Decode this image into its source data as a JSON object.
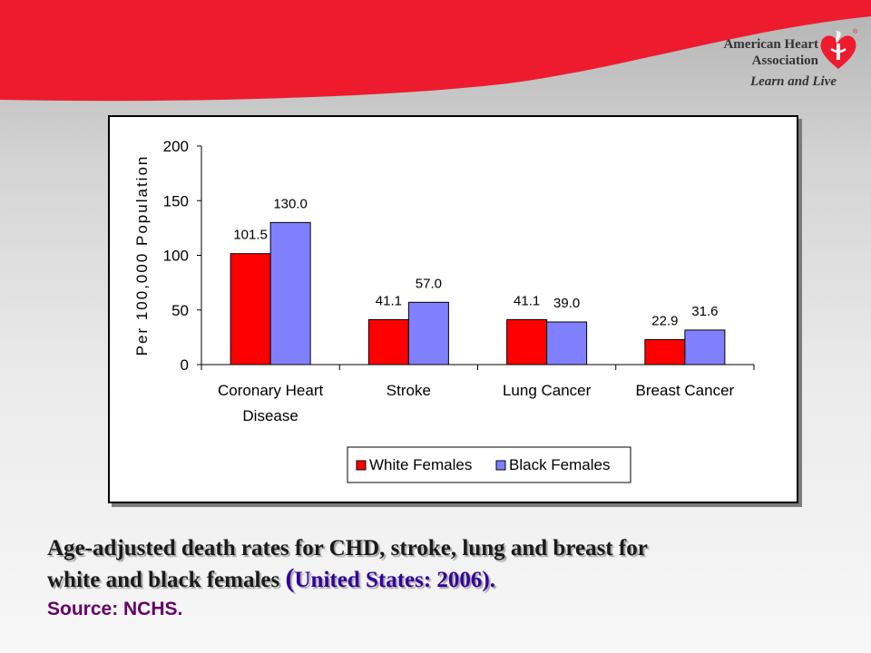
{
  "brand": {
    "name_line1": "American Heart",
    "name_line2": "Association",
    "tagline": "Learn and Live",
    "trademark": "®",
    "red": "#ee1b2e"
  },
  "caption": {
    "line1": "Age-adjusted death rates for CHD, stroke, lung and breast for",
    "line2_prefix": "white and black females ",
    "line2_paren": "(",
    "line2_blue": "United States: 2006).",
    "source": "Source: NCHS."
  },
  "chart_data": {
    "type": "bar",
    "categories": [
      "Coronary Heart Disease",
      "Stroke",
      "Lung Cancer",
      "Breast Cancer"
    ],
    "category_lines": [
      [
        "Coronary Heart",
        "Disease"
      ],
      [
        "Stroke"
      ],
      [
        "Lung Cancer"
      ],
      [
        "Breast Cancer"
      ]
    ],
    "series": [
      {
        "name": "White Females",
        "color": "#ff0000",
        "values": [
          101.5,
          41.1,
          41.1,
          22.9
        ],
        "labels": [
          "101.5",
          "41.1",
          "41.1",
          "22.9"
        ]
      },
      {
        "name": "Black Females",
        "color": "#8080ff",
        "values": [
          130.0,
          57.0,
          39.0,
          31.6
        ],
        "labels": [
          "130.0",
          "57.0",
          "39.0",
          "31.6"
        ]
      }
    ],
    "ylabel": "Per 100,000 Population",
    "ylim": [
      0,
      200
    ],
    "yticks": [
      0,
      50,
      100,
      150,
      200
    ],
    "legend_position": "bottom",
    "grid": false
  }
}
